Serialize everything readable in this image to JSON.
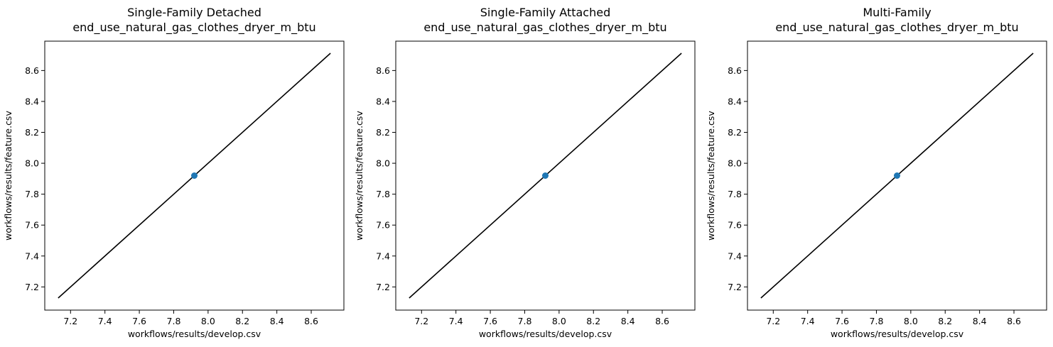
{
  "chart_data": [
    {
      "type": "scatter",
      "title": "Single-Family Detached\nend_use_natural_gas_clothes_dryer_m_btu",
      "xlabel": "workflows/results/develop.csv",
      "ylabel": "workflows/results/feature.csv",
      "xlim": [
        7.05,
        8.79
      ],
      "ylim": [
        7.05,
        8.79
      ],
      "xticks": [
        7.2,
        7.4,
        7.6,
        7.8,
        8.0,
        8.2,
        8.4,
        8.6
      ],
      "yticks": [
        7.2,
        7.4,
        7.6,
        7.8,
        8.0,
        8.2,
        8.4,
        8.6
      ],
      "points": [
        {
          "x": 7.92,
          "y": 7.92
        }
      ],
      "reference_line": {
        "x": [
          7.128,
          8.712
        ],
        "y": [
          7.128,
          8.712
        ]
      },
      "point_color": "#1f77b4",
      "line_color": "#000000"
    },
    {
      "type": "scatter",
      "title": "Single-Family Attached\nend_use_natural_gas_clothes_dryer_m_btu",
      "xlabel": "workflows/results/develop.csv",
      "ylabel": "workflows/results/feature.csv",
      "xlim": [
        7.05,
        8.79
      ],
      "ylim": [
        7.05,
        8.79
      ],
      "xticks": [
        7.2,
        7.4,
        7.6,
        7.8,
        8.0,
        8.2,
        8.4,
        8.6
      ],
      "yticks": [
        7.2,
        7.4,
        7.6,
        7.8,
        8.0,
        8.2,
        8.4,
        8.6
      ],
      "points": [
        {
          "x": 7.92,
          "y": 7.92
        }
      ],
      "reference_line": {
        "x": [
          7.128,
          8.712
        ],
        "y": [
          7.128,
          8.712
        ]
      },
      "point_color": "#1f77b4",
      "line_color": "#000000"
    },
    {
      "type": "scatter",
      "title": "Multi-Family\nend_use_natural_gas_clothes_dryer_m_btu",
      "xlabel": "workflows/results/develop.csv",
      "ylabel": "workflows/results/feature.csv",
      "xlim": [
        7.05,
        8.79
      ],
      "ylim": [
        7.05,
        8.79
      ],
      "xticks": [
        7.2,
        7.4,
        7.6,
        7.8,
        8.0,
        8.2,
        8.4,
        8.6
      ],
      "yticks": [
        7.2,
        7.4,
        7.6,
        7.8,
        8.0,
        8.2,
        8.4,
        8.6
      ],
      "points": [
        {
          "x": 7.92,
          "y": 7.92
        }
      ],
      "reference_line": {
        "x": [
          7.128,
          8.712
        ],
        "y": [
          7.128,
          8.712
        ]
      },
      "point_color": "#1f77b4",
      "line_color": "#000000"
    }
  ]
}
